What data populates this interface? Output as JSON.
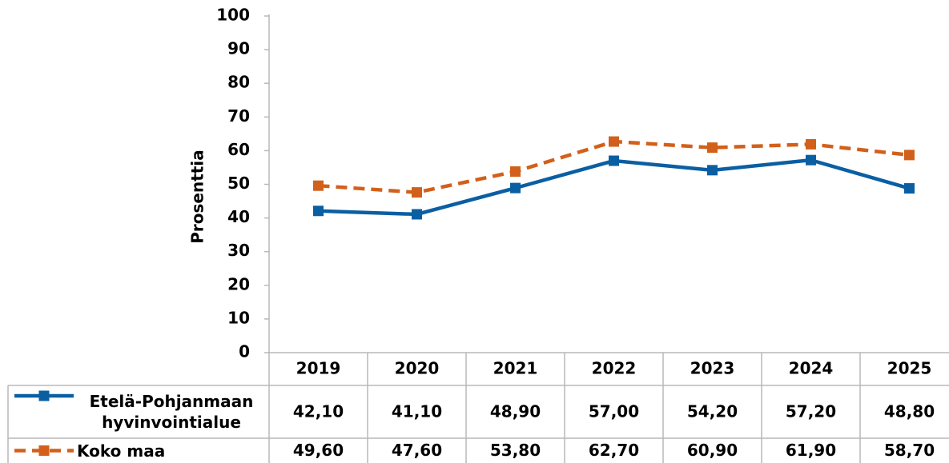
{
  "chart_data": {
    "type": "line",
    "y_label": "Prosenttia",
    "categories": [
      "2019",
      "2020",
      "2021",
      "2022",
      "2023",
      "2024",
      "2025"
    ],
    "series": [
      {
        "name": "Etelä-Pohjanmaan hyvinvointialue",
        "color": "#0a5fa3",
        "dashed": false,
        "values": [
          42.1,
          41.1,
          48.9,
          57.0,
          54.2,
          57.2,
          48.8
        ],
        "value_labels": [
          "42,10",
          "41,10",
          "48,90",
          "57,00",
          "54,20",
          "57,20",
          "48,80"
        ]
      },
      {
        "name": "Koko maa",
        "color": "#d2601a",
        "dashed": true,
        "values": [
          49.6,
          47.6,
          53.8,
          62.7,
          60.9,
          61.9,
          58.7
        ],
        "value_labels": [
          "49,60",
          "47,60",
          "53,80",
          "62,70",
          "60,90",
          "61,90",
          "58,70"
        ]
      }
    ],
    "ylim": [
      0,
      100
    ],
    "yticks": [
      0,
      10,
      20,
      30,
      40,
      50,
      60,
      70,
      80,
      90,
      100
    ],
    "grid": false
  }
}
